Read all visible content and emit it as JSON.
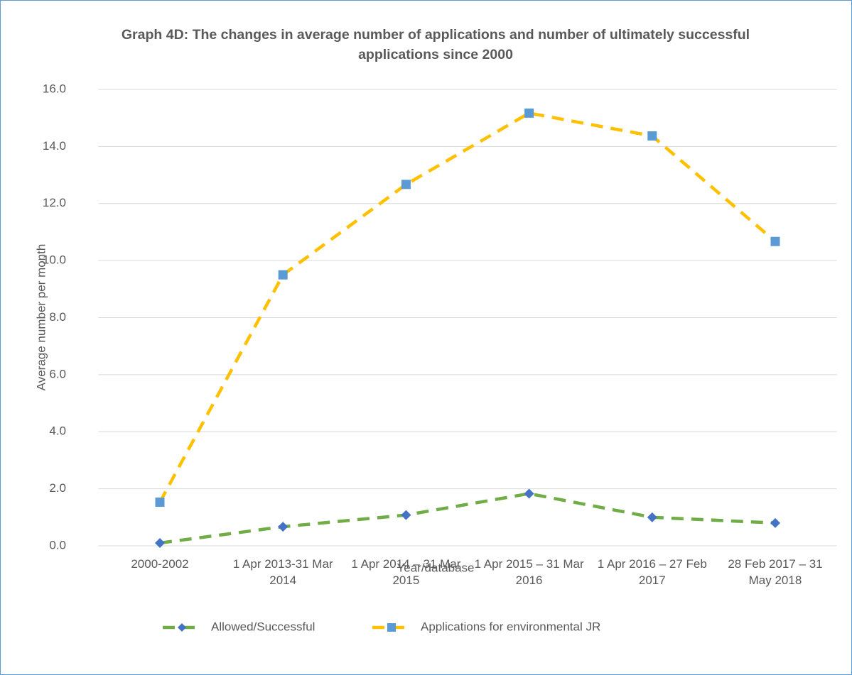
{
  "chart_data": {
    "type": "line",
    "title": "Graph 4D: The changes in average number of applications and number of ultimately successful applications since 2000",
    "x_label": "Year/database",
    "y_label": "Average number per month",
    "categories": [
      "2000-2002",
      "1 Apr 2013-31 Mar 2014",
      "1 Apr 2014 – 31 Mar 2015",
      "1 Apr 2015 – 31 Mar 2016",
      "1 Apr 2016 – 27 Feb 2017",
      "28 Feb 2017 – 31 May 2018"
    ],
    "series": [
      {
        "name": "Allowed/Successful",
        "color": "#70ad47",
        "marker_color": "#4472c4",
        "marker": "diamond",
        "values": [
          0.1,
          0.67,
          1.08,
          1.83,
          1.0,
          0.8
        ]
      },
      {
        "name": "Applications for environmental JR",
        "color": "#ffc000",
        "marker_color": "#5b9bd5",
        "marker": "square",
        "values": [
          1.53,
          9.5,
          12.67,
          15.17,
          14.37,
          10.67
        ]
      }
    ],
    "ylim": [
      0,
      16
    ],
    "yticks": [
      {
        "value": 0,
        "label": "0.0"
      },
      {
        "value": 2,
        "label": "2.0"
      },
      {
        "value": 4,
        "label": "4.0"
      },
      {
        "value": 6,
        "label": "6.0"
      },
      {
        "value": 8,
        "label": "8.0"
      },
      {
        "value": 10,
        "label": "10.0"
      },
      {
        "value": 12,
        "label": "12.0"
      },
      {
        "value": 14,
        "label": "14.0"
      },
      {
        "value": 16,
        "label": "16.0"
      }
    ],
    "grid": true,
    "legend": "bottom"
  }
}
